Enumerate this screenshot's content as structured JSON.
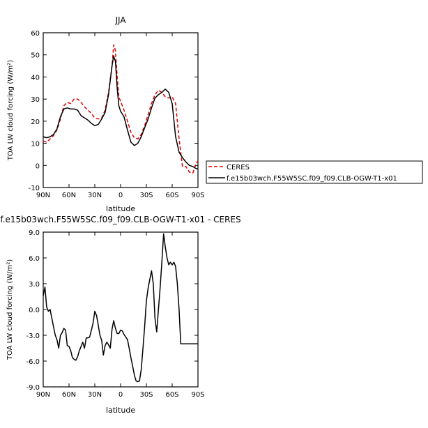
{
  "chart_data": [
    {
      "type": "line",
      "title": "JJA",
      "xlabel": "latitude",
      "ylabel": "TOA LW cloud forcing (W/m²)",
      "x_ticks": [
        -90,
        -60,
        -30,
        0,
        30,
        60,
        90
      ],
      "x_tick_labels": [
        "90N",
        "60N",
        "30N",
        "0",
        "30S",
        "60S",
        "90S"
      ],
      "xlim": [
        -90,
        90
      ],
      "ylim": [
        -10,
        60
      ],
      "y_ticks": [
        -10,
        0,
        10,
        20,
        30,
        40,
        50,
        60
      ],
      "y_tick_labels": [
        "-10",
        "0",
        "10",
        "20",
        "30",
        "40",
        "50",
        "60"
      ],
      "legend_position": "right",
      "series": [
        {
          "name": "CERES",
          "color": "#dd0000",
          "style": "dashed",
          "x": [
            -90,
            -86,
            -82,
            -78,
            -74,
            -70,
            -66,
            -62,
            -58,
            -54,
            -50,
            -46,
            -42,
            -38,
            -34,
            -30,
            -26,
            -22,
            -18,
            -14,
            -10,
            -8,
            -6,
            -4,
            -2,
            0,
            4,
            8,
            12,
            16,
            20,
            24,
            28,
            32,
            36,
            40,
            44,
            48,
            52,
            56,
            60,
            64,
            68,
            72,
            76,
            80,
            84,
            88,
            90
          ],
          "y": [
            11,
            10.5,
            12,
            13.5,
            16,
            21,
            27,
            28.5,
            28,
            30,
            30,
            28.5,
            26.5,
            25,
            23.5,
            21.5,
            21,
            21.5,
            25,
            33,
            45,
            54.5,
            52,
            40,
            31,
            29,
            25,
            20,
            15,
            12.5,
            12,
            14,
            18,
            23,
            28,
            32,
            34,
            33,
            31,
            30.5,
            31,
            28,
            12,
            -0.5,
            -0.5,
            -3,
            -3.5,
            1,
            2
          ]
        },
        {
          "name": "f.e15b03wch.F55W5SC.f09_f09.CLB-OGW-T1-x01",
          "color": "#000000",
          "style": "solid",
          "x": [
            -90,
            -86,
            -82,
            -78,
            -74,
            -70,
            -66,
            -62,
            -58,
            -54,
            -50,
            -46,
            -42,
            -38,
            -34,
            -30,
            -26,
            -22,
            -18,
            -14,
            -10,
            -8,
            -6,
            -4,
            -2,
            0,
            4,
            8,
            12,
            16,
            20,
            24,
            28,
            32,
            36,
            40,
            44,
            48,
            52,
            56,
            60,
            64,
            68,
            72,
            76,
            80,
            84,
            88,
            90
          ],
          "y": [
            13,
            12.5,
            13,
            14,
            16.5,
            22,
            25.5,
            26,
            25.5,
            25.5,
            25,
            22.5,
            21.5,
            20.5,
            19,
            18,
            18.5,
            21,
            24,
            32,
            45,
            49.5,
            47,
            35,
            27,
            24.5,
            22,
            16,
            10.5,
            9,
            10,
            13,
            17,
            21,
            26,
            30.5,
            32,
            33,
            34.5,
            33,
            28,
            13,
            6,
            3.5,
            1.5,
            0,
            -0.5,
            -1.5,
            -1.5
          ]
        }
      ]
    },
    {
      "type": "line",
      "title": "f.e15b03wch.F55W5SC.f09_f09.CLB-OGW-T1-x01  - CERES",
      "xlabel": "latitude",
      "ylabel": "TOA LW cloud forcing (W/m²)",
      "x_ticks": [
        -90,
        -60,
        -30,
        0,
        30,
        60,
        90
      ],
      "x_tick_labels": [
        "90N",
        "60N",
        "30N",
        "0",
        "30S",
        "60S",
        "90S"
      ],
      "xlim": [
        -90,
        90
      ],
      "ylim": [
        -9,
        9
      ],
      "y_ticks": [
        -9,
        -6,
        -3,
        0,
        3,
        6,
        9
      ],
      "y_tick_labels": [
        "-9.0",
        "-6.0",
        "-3.0",
        "0.0",
        "3.0",
        "6.0",
        "9.0"
      ],
      "series": [
        {
          "name": "",
          "color": "#000000",
          "style": "solid",
          "x": [
            -90,
            -88,
            -86,
            -84,
            -82,
            -80,
            -78,
            -76,
            -74,
            -72,
            -70,
            -68,
            -66,
            -64,
            -62,
            -60,
            -58,
            -56,
            -54,
            -52,
            -50,
            -48,
            -46,
            -44,
            -42,
            -40,
            -38,
            -36,
            -34,
            -32,
            -30,
            -28,
            -26,
            -24,
            -22,
            -20,
            -18,
            -16,
            -14,
            -12,
            -10,
            -8,
            -6,
            -4,
            -2,
            0,
            2,
            4,
            6,
            8,
            10,
            12,
            14,
            16,
            18,
            20,
            22,
            24,
            26,
            28,
            30,
            32,
            34,
            36,
            38,
            40,
            42,
            44,
            46,
            48,
            50,
            52,
            54,
            56,
            58,
            60,
            62,
            64,
            66,
            68,
            70,
            72,
            74,
            76,
            78,
            80,
            82,
            84,
            86,
            88,
            90
          ],
          "y": [
            1.6,
            2.6,
            0.3,
            -0.2,
            0.0,
            -1.0,
            -2.0,
            -3.0,
            -3.5,
            -4.5,
            -3.0,
            -2.7,
            -2.2,
            -2.4,
            -4.2,
            -4.3,
            -4.8,
            -5.6,
            -5.8,
            -5.9,
            -5.5,
            -4.8,
            -4.3,
            -3.8,
            -4.5,
            -3.3,
            -3.3,
            -3.2,
            -2.4,
            -1.6,
            -0.2,
            -0.7,
            -1.8,
            -3.0,
            -3.6,
            -5.3,
            -4.2,
            -3.8,
            -4.1,
            -4.5,
            -2.3,
            -1.3,
            -2.2,
            -2.8,
            -2.8,
            -2.4,
            -2.5,
            -2.9,
            -3.2,
            -3.5,
            -4.5,
            -5.6,
            -6.6,
            -7.6,
            -8.3,
            -8.4,
            -8.3,
            -7.0,
            -4.5,
            -2.0,
            1.0,
            2.5,
            3.5,
            4.5,
            3.0,
            -1.0,
            -2.6,
            0.0,
            2.5,
            5.5,
            8.8,
            7.3,
            6.0,
            5.2,
            5.5,
            5.2,
            5.5,
            5.0,
            3.0,
            0.0,
            -4.0,
            -4.0,
            -4.0,
            -4.0,
            -4.0,
            -4.0,
            -4.0,
            -4.0,
            -4.0,
            -4.0,
            -4.0
          ]
        }
      ]
    }
  ]
}
